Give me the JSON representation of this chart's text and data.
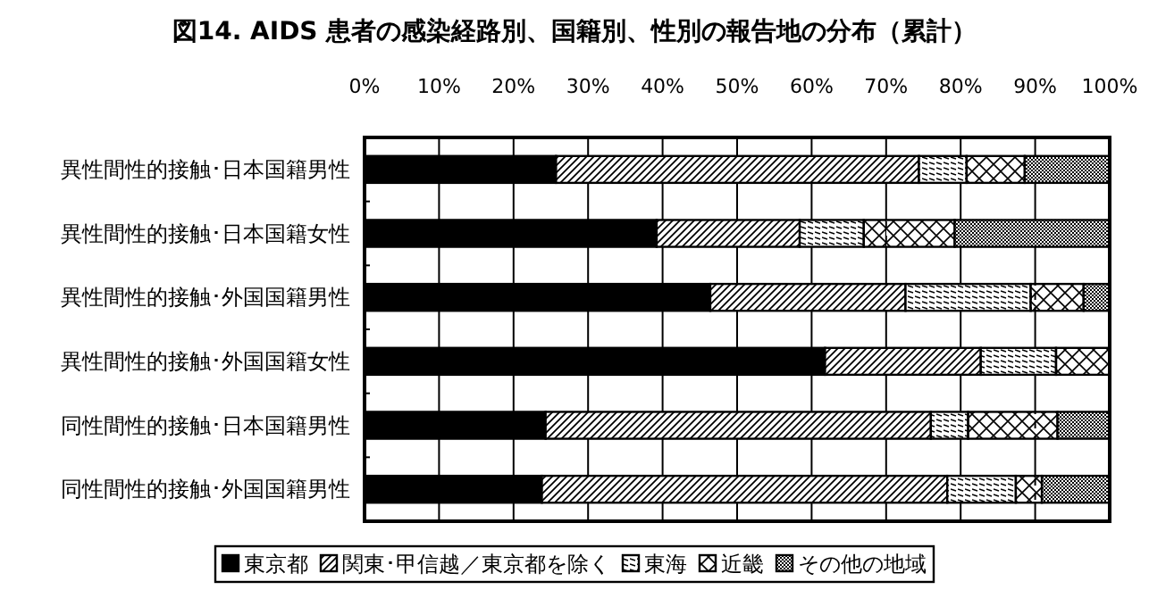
{
  "chart_data": {
    "type": "bar",
    "orientation": "horizontal",
    "stacked": true,
    "title": "図14. AIDS 患者の感染経路別、国籍別、性別の報告地の分布（累計）",
    "categories": [
      "異性間性的接触･日本国籍男性",
      "異性間性的接触･日本国籍女性",
      "異性間性的接触･外国国籍男性",
      "異性間性的接触･外国国籍女性",
      "同性間性的接触･日本国籍男性",
      "同性間性的接触･外国国籍男性"
    ],
    "series": [
      {
        "name": "東京都",
        "color": "#000000",
        "values": [
          25.7,
          39.2,
          46.4,
          61.8,
          24.3,
          23.8
        ]
      },
      {
        "name": "関東･甲信越／東京都を除く",
        "color": "#000000",
        "values": [
          48.7,
          19.2,
          26.2,
          20.9,
          51.7,
          54.4
        ]
      },
      {
        "name": "東海",
        "color": "#000000",
        "values": [
          6.4,
          8.6,
          16.8,
          10.1,
          5.0,
          9.2
        ]
      },
      {
        "name": "近畿",
        "color": "#000000",
        "values": [
          7.8,
          12.2,
          7.1,
          7.2,
          12.0,
          3.5
        ]
      },
      {
        "name": "その他の地域",
        "color": "#000000",
        "values": [
          11.4,
          20.8,
          3.5,
          0,
          7.0,
          9.1
        ]
      }
    ],
    "xlim": [
      0,
      100
    ],
    "xticks": [
      {
        "value": 0,
        "label": "0%"
      },
      {
        "value": 10,
        "label": "10%"
      },
      {
        "value": 20,
        "label": "20%"
      },
      {
        "value": 30,
        "label": "30%"
      },
      {
        "value": 40,
        "label": "40%"
      },
      {
        "value": 50,
        "label": "50%"
      },
      {
        "value": 60,
        "label": "60%"
      },
      {
        "value": 70,
        "label": "70%"
      },
      {
        "value": 80,
        "label": "80%"
      },
      {
        "value": 90,
        "label": "90%"
      },
      {
        "value": 100,
        "label": "100%"
      }
    ],
    "grid": "x",
    "legend": "bottom"
  }
}
